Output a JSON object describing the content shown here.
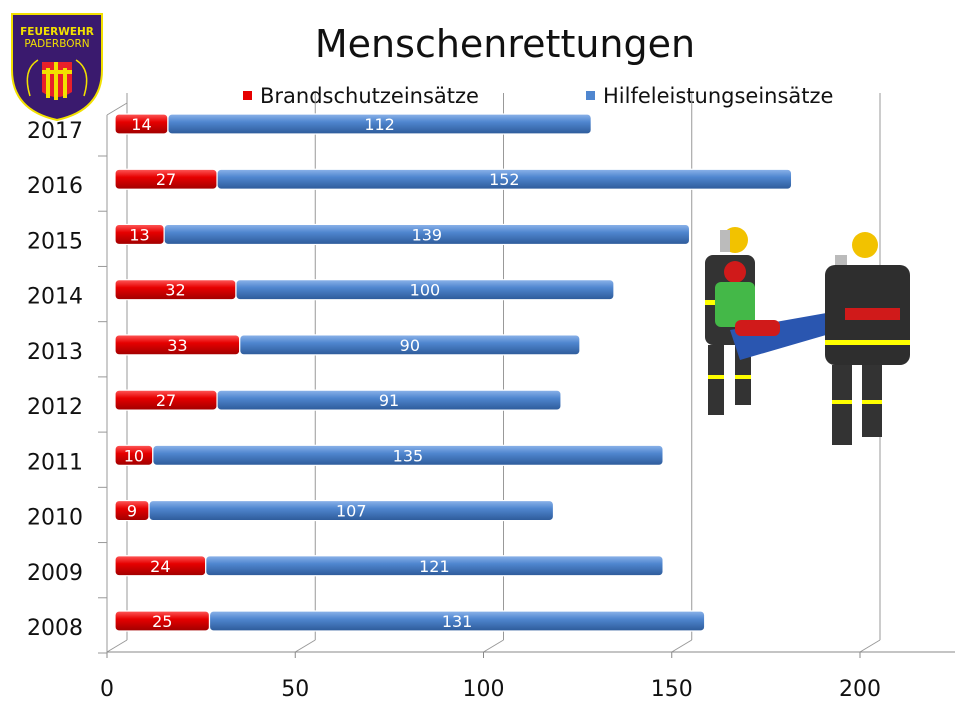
{
  "logo": {
    "text_line1": "FEUERWEHR",
    "text_line2": "PADERBORN",
    "colors": {
      "shield": "#3a1a6e",
      "gold": "#f2e000",
      "red": "#e8202a"
    }
  },
  "chart_data": {
    "type": "bar",
    "orientation": "horizontal",
    "stacked": true,
    "title": "Menschenrettungen",
    "categories": [
      "2017",
      "2016",
      "2015",
      "2014",
      "2013",
      "2012",
      "2011",
      "2010",
      "2009",
      "2008"
    ],
    "series": [
      {
        "name": "Brandschutzeinsätze",
        "color": "#e60000",
        "values": [
          14,
          27,
          13,
          32,
          33,
          27,
          10,
          9,
          24,
          25
        ]
      },
      {
        "name": "Hilfeleistungseinsätze",
        "color": "#4f86cf",
        "values": [
          112,
          152,
          139,
          100,
          90,
          91,
          135,
          107,
          121,
          131
        ]
      }
    ],
    "xlim": [
      0,
      225
    ],
    "xticks": [
      "0",
      "50",
      "100",
      "150",
      "200"
    ],
    "grid": true,
    "legend": "top",
    "data_labels": true
  }
}
